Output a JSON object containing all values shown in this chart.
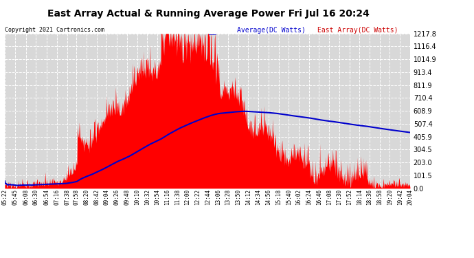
{
  "title": "East Array Actual & Running Average Power Fri Jul 16 20:24",
  "copyright": "Copyright 2021 Cartronics.com",
  "legend_average": "Average(DC Watts)",
  "legend_east": "East Array(DC Watts)",
  "yticks": [
    0.0,
    101.5,
    203.0,
    304.5,
    405.9,
    507.4,
    608.9,
    710.4,
    811.9,
    913.4,
    1014.9,
    1116.4,
    1217.8
  ],
  "ymax": 1217.8,
  "bg_color": "#ffffff",
  "plot_bg_color": "#d8d8d8",
  "grid_color": "#ffffff",
  "fill_color": "#ff0000",
  "line_color": "#0000cc",
  "title_color": "#000000",
  "copyright_color": "#000000",
  "legend_avg_color": "#0000cc",
  "legend_east_color": "#cc0000",
  "xtick_labels": [
    "05:22",
    "05:45",
    "06:08",
    "06:30",
    "06:54",
    "07:16",
    "07:38",
    "07:58",
    "08:20",
    "08:42",
    "09:04",
    "09:26",
    "09:48",
    "10:10",
    "10:32",
    "10:54",
    "11:16",
    "11:38",
    "12:00",
    "12:22",
    "12:44",
    "13:06",
    "13:28",
    "13:50",
    "14:12",
    "14:34",
    "14:56",
    "15:18",
    "15:40",
    "16:02",
    "16:24",
    "16:46",
    "17:08",
    "17:30",
    "17:52",
    "18:14",
    "18:36",
    "18:58",
    "19:20",
    "19:42",
    "20:04"
  ]
}
